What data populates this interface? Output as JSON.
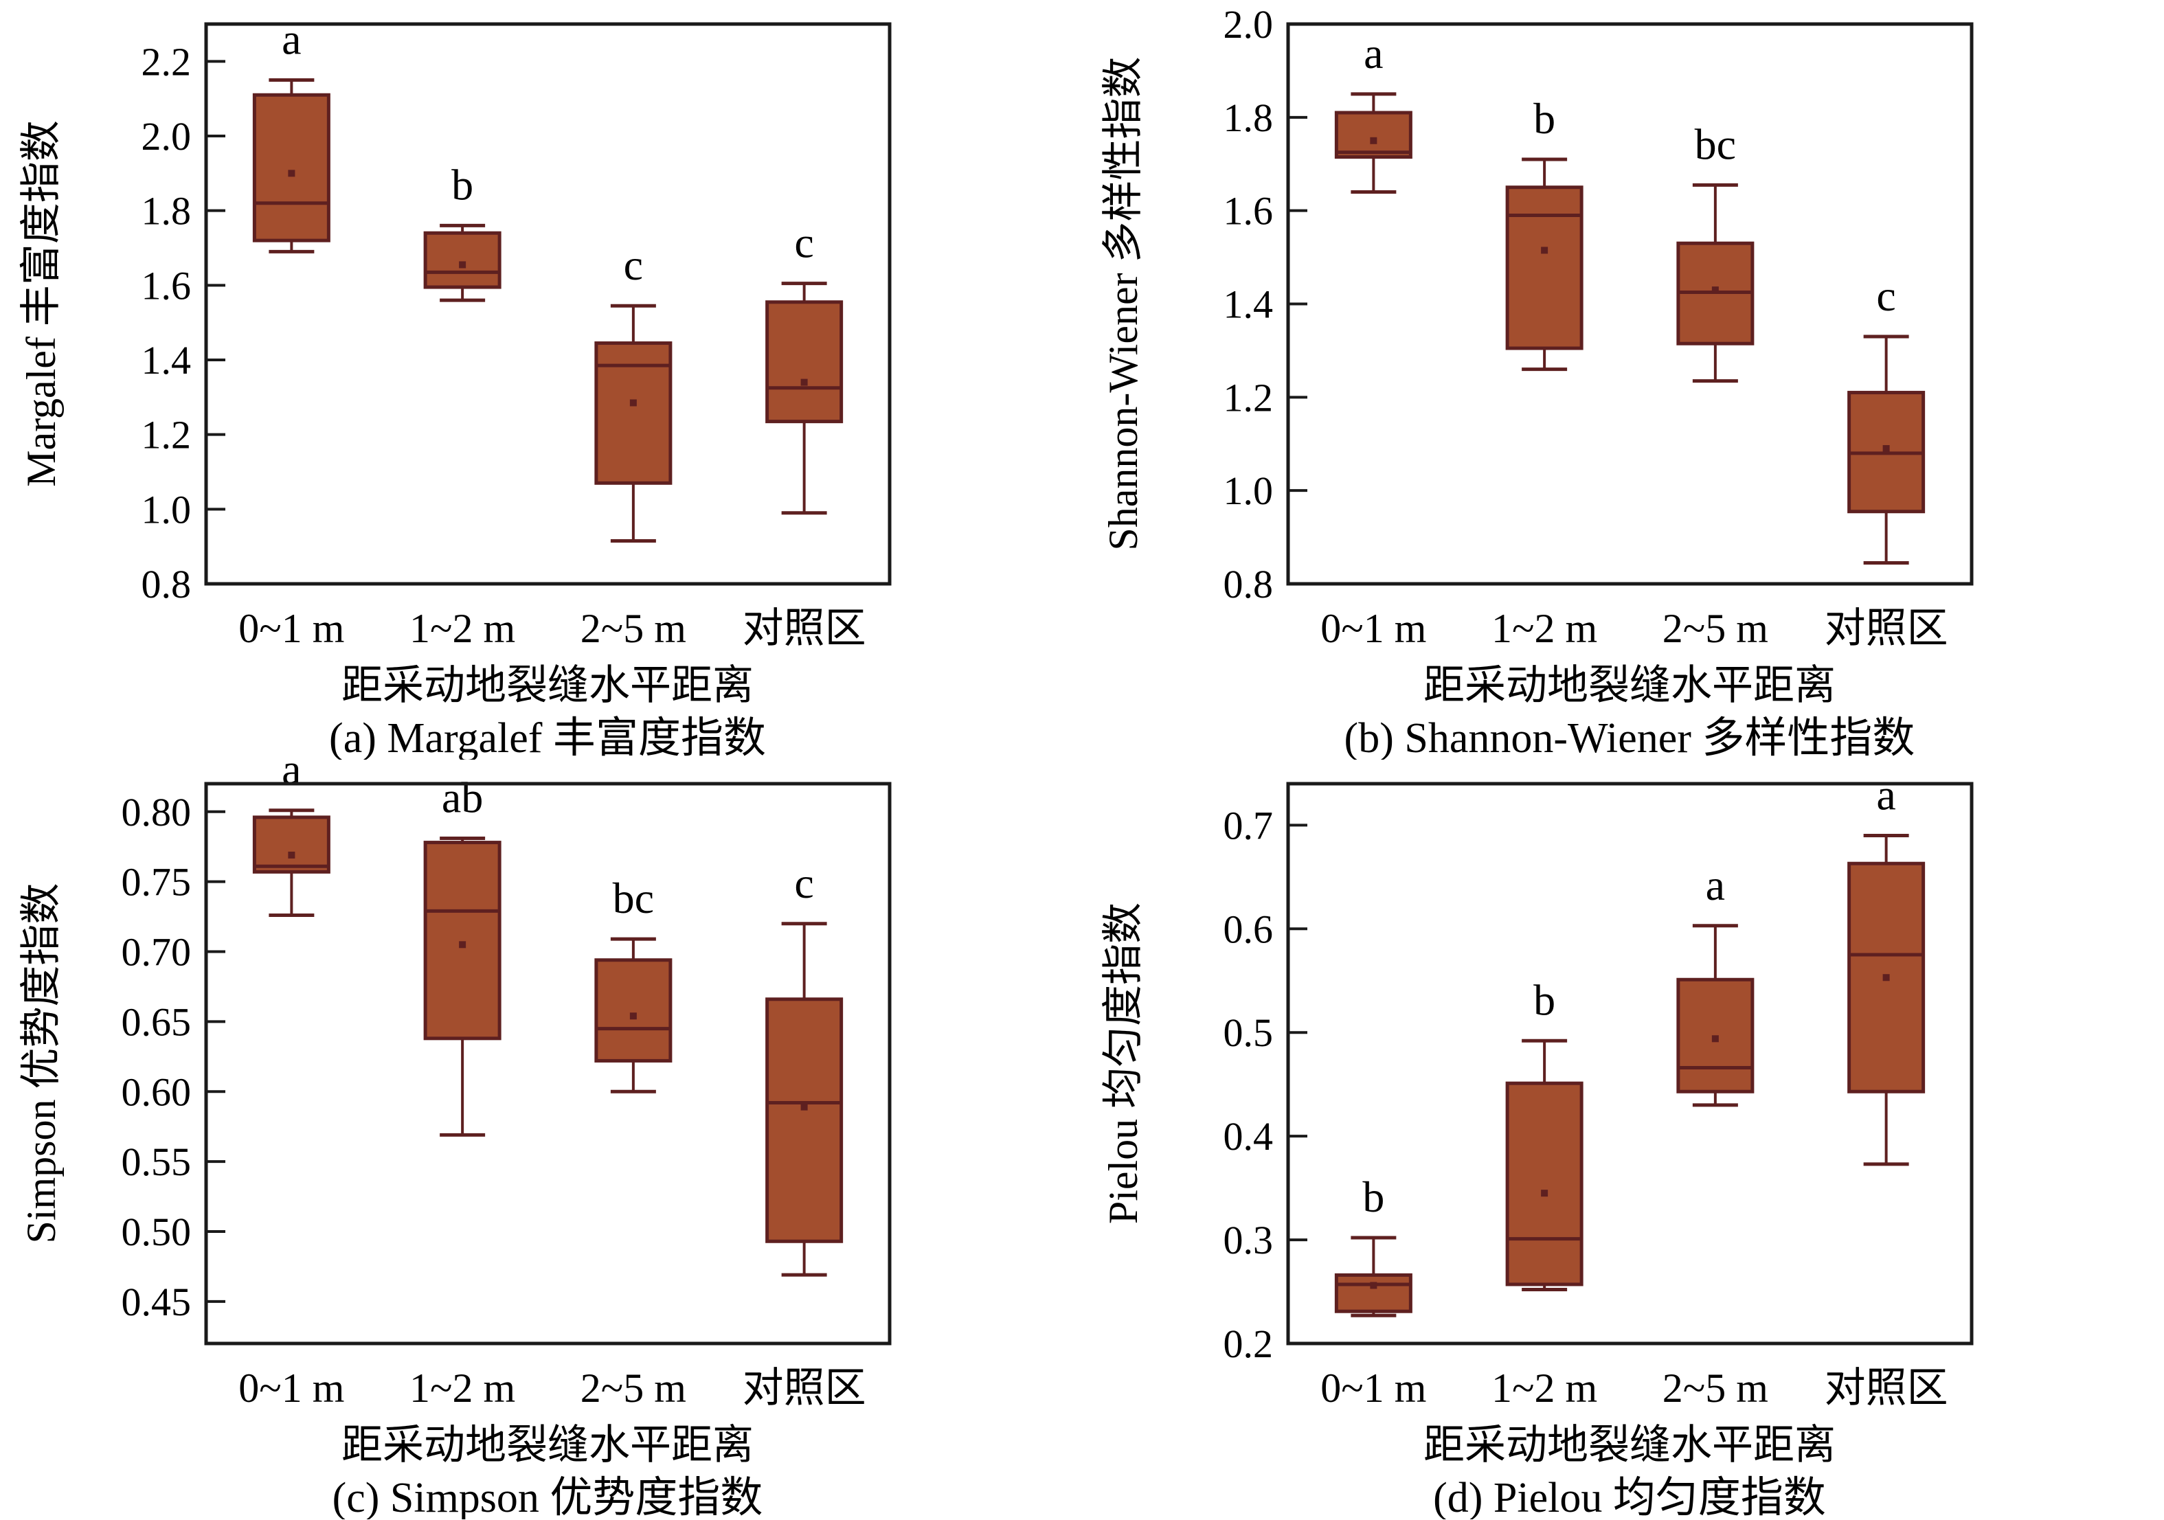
{
  "colors": {
    "box_fill": "#A34E2E",
    "box_stroke": "#5E2020",
    "frame": "#1a1a1a",
    "text": "#000000"
  },
  "chart_data": [
    {
      "id": "a",
      "type": "box",
      "title": "(a) Margalef 丰富度指数",
      "ylabel": "Margalef 丰富度指数",
      "xlabel": "距采动地裂缝水平距离",
      "categories": [
        "0~1 m",
        "1~2 m",
        "2~5 m",
        "对照区"
      ],
      "ylim": [
        0.8,
        2.3
      ],
      "yticks": [
        0.8,
        1.0,
        1.2,
        1.4,
        1.6,
        1.8,
        2.0,
        2.2
      ],
      "tick_decimals": 1,
      "grid": false,
      "boxes": [
        {
          "category": "0~1 m",
          "sig": "a",
          "whisker_low": 1.69,
          "q1": 1.72,
          "median": 1.82,
          "mean": 1.9,
          "q3": 2.11,
          "whisker_high": 2.15
        },
        {
          "category": "1~2 m",
          "sig": "b",
          "whisker_low": 1.56,
          "q1": 1.595,
          "median": 1.635,
          "mean": 1.655,
          "q3": 1.74,
          "whisker_high": 1.76
        },
        {
          "category": "2~5 m",
          "sig": "c",
          "whisker_low": 0.915,
          "q1": 1.07,
          "median": 1.385,
          "mean": 1.285,
          "q3": 1.445,
          "whisker_high": 1.545
        },
        {
          "category": "对照区",
          "sig": "c",
          "whisker_low": 0.99,
          "q1": 1.235,
          "median": 1.325,
          "mean": 1.34,
          "q3": 1.555,
          "whisker_high": 1.605
        }
      ]
    },
    {
      "id": "b",
      "type": "box",
      "title": "(b) Shannon-Wiener 多样性指数",
      "ylabel": "Shannon-Wiener 多样性指数",
      "xlabel": "距采动地裂缝水平距离",
      "categories": [
        "0~1 m",
        "1~2 m",
        "2~5 m",
        "对照区"
      ],
      "ylim": [
        0.8,
        2.0
      ],
      "yticks": [
        0.8,
        1.0,
        1.2,
        1.4,
        1.6,
        1.8,
        2.0
      ],
      "tick_decimals": 1,
      "grid": false,
      "boxes": [
        {
          "category": "0~1 m",
          "sig": "a",
          "whisker_low": 1.64,
          "q1": 1.715,
          "median": 1.725,
          "mean": 1.75,
          "q3": 1.81,
          "whisker_high": 1.85
        },
        {
          "category": "1~2 m",
          "sig": "b",
          "whisker_low": 1.26,
          "q1": 1.305,
          "median": 1.59,
          "mean": 1.515,
          "q3": 1.65,
          "whisker_high": 1.71
        },
        {
          "category": "2~5 m",
          "sig": "bc",
          "whisker_low": 1.235,
          "q1": 1.315,
          "median": 1.425,
          "mean": 1.43,
          "q3": 1.53,
          "whisker_high": 1.655
        },
        {
          "category": "对照区",
          "sig": "c",
          "whisker_low": 0.845,
          "q1": 0.955,
          "median": 1.08,
          "mean": 1.09,
          "q3": 1.21,
          "whisker_high": 1.33
        }
      ]
    },
    {
      "id": "c",
      "type": "box",
      "title": "(c) Simpson 优势度指数",
      "ylabel": "Simpson 优势度指数",
      "xlabel": "距采动地裂缝水平距离",
      "categories": [
        "0~1 m",
        "1~2 m",
        "2~5 m",
        "对照区"
      ],
      "ylim": [
        0.42,
        0.82
      ],
      "yticks": [
        0.45,
        0.5,
        0.55,
        0.6,
        0.65,
        0.7,
        0.75,
        0.8
      ],
      "tick_decimals": 2,
      "grid": false,
      "boxes": [
        {
          "category": "0~1 m",
          "sig": "a",
          "whisker_low": 0.726,
          "q1": 0.757,
          "median": 0.761,
          "mean": 0.769,
          "q3": 0.796,
          "whisker_high": 0.801
        },
        {
          "category": "1~2 m",
          "sig": "ab",
          "whisker_low": 0.569,
          "q1": 0.638,
          "median": 0.729,
          "mean": 0.705,
          "q3": 0.778,
          "whisker_high": 0.781
        },
        {
          "category": "2~5 m",
          "sig": "bc",
          "whisker_low": 0.6,
          "q1": 0.622,
          "median": 0.645,
          "mean": 0.654,
          "q3": 0.694,
          "whisker_high": 0.709
        },
        {
          "category": "对照区",
          "sig": "c",
          "whisker_low": 0.469,
          "q1": 0.493,
          "median": 0.592,
          "mean": 0.589,
          "q3": 0.666,
          "whisker_high": 0.72
        }
      ]
    },
    {
      "id": "d",
      "type": "box",
      "title": "(d) Pielou 均匀度指数",
      "ylabel": "Pielou 均匀度指数",
      "xlabel": "距采动地裂缝水平距离",
      "categories": [
        "0~1 m",
        "1~2 m",
        "2~5 m",
        "对照区"
      ],
      "ylim": [
        0.2,
        0.74
      ],
      "yticks": [
        0.2,
        0.3,
        0.4,
        0.5,
        0.6,
        0.7
      ],
      "tick_decimals": 1,
      "grid": false,
      "boxes": [
        {
          "category": "0~1 m",
          "sig": "b",
          "whisker_low": 0.227,
          "q1": 0.231,
          "median": 0.257,
          "mean": 0.256,
          "q3": 0.266,
          "whisker_high": 0.302
        },
        {
          "category": "1~2 m",
          "sig": "b",
          "whisker_low": 0.252,
          "q1": 0.257,
          "median": 0.301,
          "mean": 0.345,
          "q3": 0.451,
          "whisker_high": 0.492
        },
        {
          "category": "2~5 m",
          "sig": "a",
          "whisker_low": 0.43,
          "q1": 0.443,
          "median": 0.466,
          "mean": 0.494,
          "q3": 0.551,
          "whisker_high": 0.603
        },
        {
          "category": "对照区",
          "sig": "a",
          "whisker_low": 0.373,
          "q1": 0.443,
          "median": 0.575,
          "mean": 0.553,
          "q3": 0.663,
          "whisker_high": 0.69
        }
      ]
    }
  ]
}
